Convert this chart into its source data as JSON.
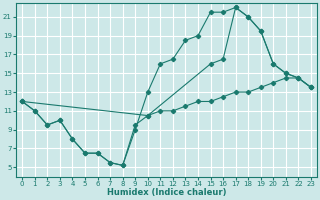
{
  "xlabel": "Humidex (Indice chaleur)",
  "background_color": "#cde8e8",
  "grid_color": "#ffffff",
  "line_color": "#1a7a6e",
  "xlim": [
    -0.5,
    23.5
  ],
  "ylim": [
    4.0,
    22.5
  ],
  "xticks": [
    0,
    1,
    2,
    3,
    4,
    5,
    6,
    7,
    8,
    9,
    10,
    11,
    12,
    13,
    14,
    15,
    16,
    17,
    18,
    19,
    20,
    21,
    22,
    23
  ],
  "yticks": [
    5,
    7,
    9,
    11,
    13,
    15,
    17,
    19,
    21
  ],
  "series": [
    {
      "x": [
        0,
        1,
        2,
        3,
        4,
        5,
        6,
        7,
        8,
        9,
        10,
        11,
        12,
        13,
        14,
        15,
        16,
        17,
        18,
        19,
        20,
        21,
        22,
        23
      ],
      "y": [
        12,
        11,
        9.5,
        10,
        8,
        6.5,
        6.5,
        5.5,
        5.2,
        9,
        13,
        16,
        16.5,
        18.5,
        19,
        21.5,
        21.5,
        22,
        21,
        19.5,
        16,
        15,
        14.5,
        13.5
      ]
    },
    {
      "x": [
        0,
        10,
        15,
        16,
        17,
        18,
        19,
        20,
        21,
        22,
        23
      ],
      "y": [
        12,
        10.5,
        16,
        16.5,
        22,
        21,
        19.5,
        16,
        15,
        14.5,
        13.5
      ]
    },
    {
      "x": [
        0,
        1,
        2,
        3,
        4,
        5,
        6,
        7,
        8,
        9,
        10,
        11,
        12,
        13,
        14,
        15,
        16,
        17,
        18,
        19,
        20,
        21,
        22,
        23
      ],
      "y": [
        12,
        11,
        9.5,
        10,
        8,
        6.5,
        6.5,
        5.5,
        5.2,
        9.5,
        10.5,
        11,
        11,
        11.5,
        12,
        12,
        12.5,
        13,
        13,
        13.5,
        14,
        14.5,
        14.5,
        13.5
      ]
    }
  ]
}
